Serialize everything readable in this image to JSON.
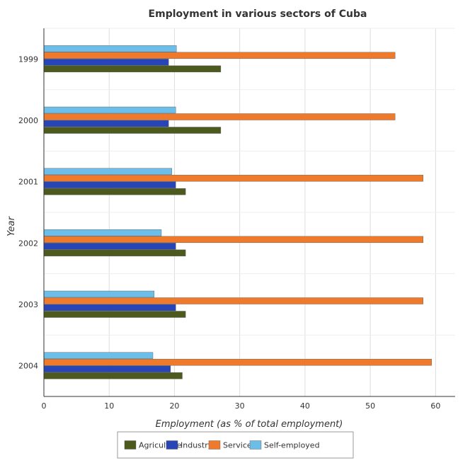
{
  "chart_data": {
    "type": "bar",
    "orientation": "horizontal",
    "title": "Employment in various sectors of Cuba",
    "xlabel": "Employment (as % of total employment)",
    "ylabel": "Year",
    "categories": [
      "1999",
      "2000",
      "2001",
      "2002",
      "2003",
      "2004"
    ],
    "xlim": [
      0,
      63
    ],
    "xticks": [
      0,
      10,
      20,
      30,
      40,
      50,
      60
    ],
    "grid": true,
    "legend_position": "bottom",
    "series": [
      {
        "name": "Agriculture",
        "color": "#4d5a1e",
        "values": [
          27.1,
          27.1,
          21.7,
          21.7,
          21.7,
          21.2
        ]
      },
      {
        "name": "Industry",
        "color": "#2845b8",
        "values": [
          19.1,
          19.1,
          20.2,
          20.2,
          20.2,
          19.4
        ]
      },
      {
        "name": "Services",
        "color": "#f07a2c",
        "values": [
          53.8,
          53.8,
          58.1,
          58.1,
          58.1,
          59.4
        ]
      },
      {
        "name": "Self-employed",
        "color": "#6cbde8",
        "values": [
          20.3,
          20.2,
          19.6,
          18.0,
          16.9,
          16.7
        ]
      }
    ]
  }
}
